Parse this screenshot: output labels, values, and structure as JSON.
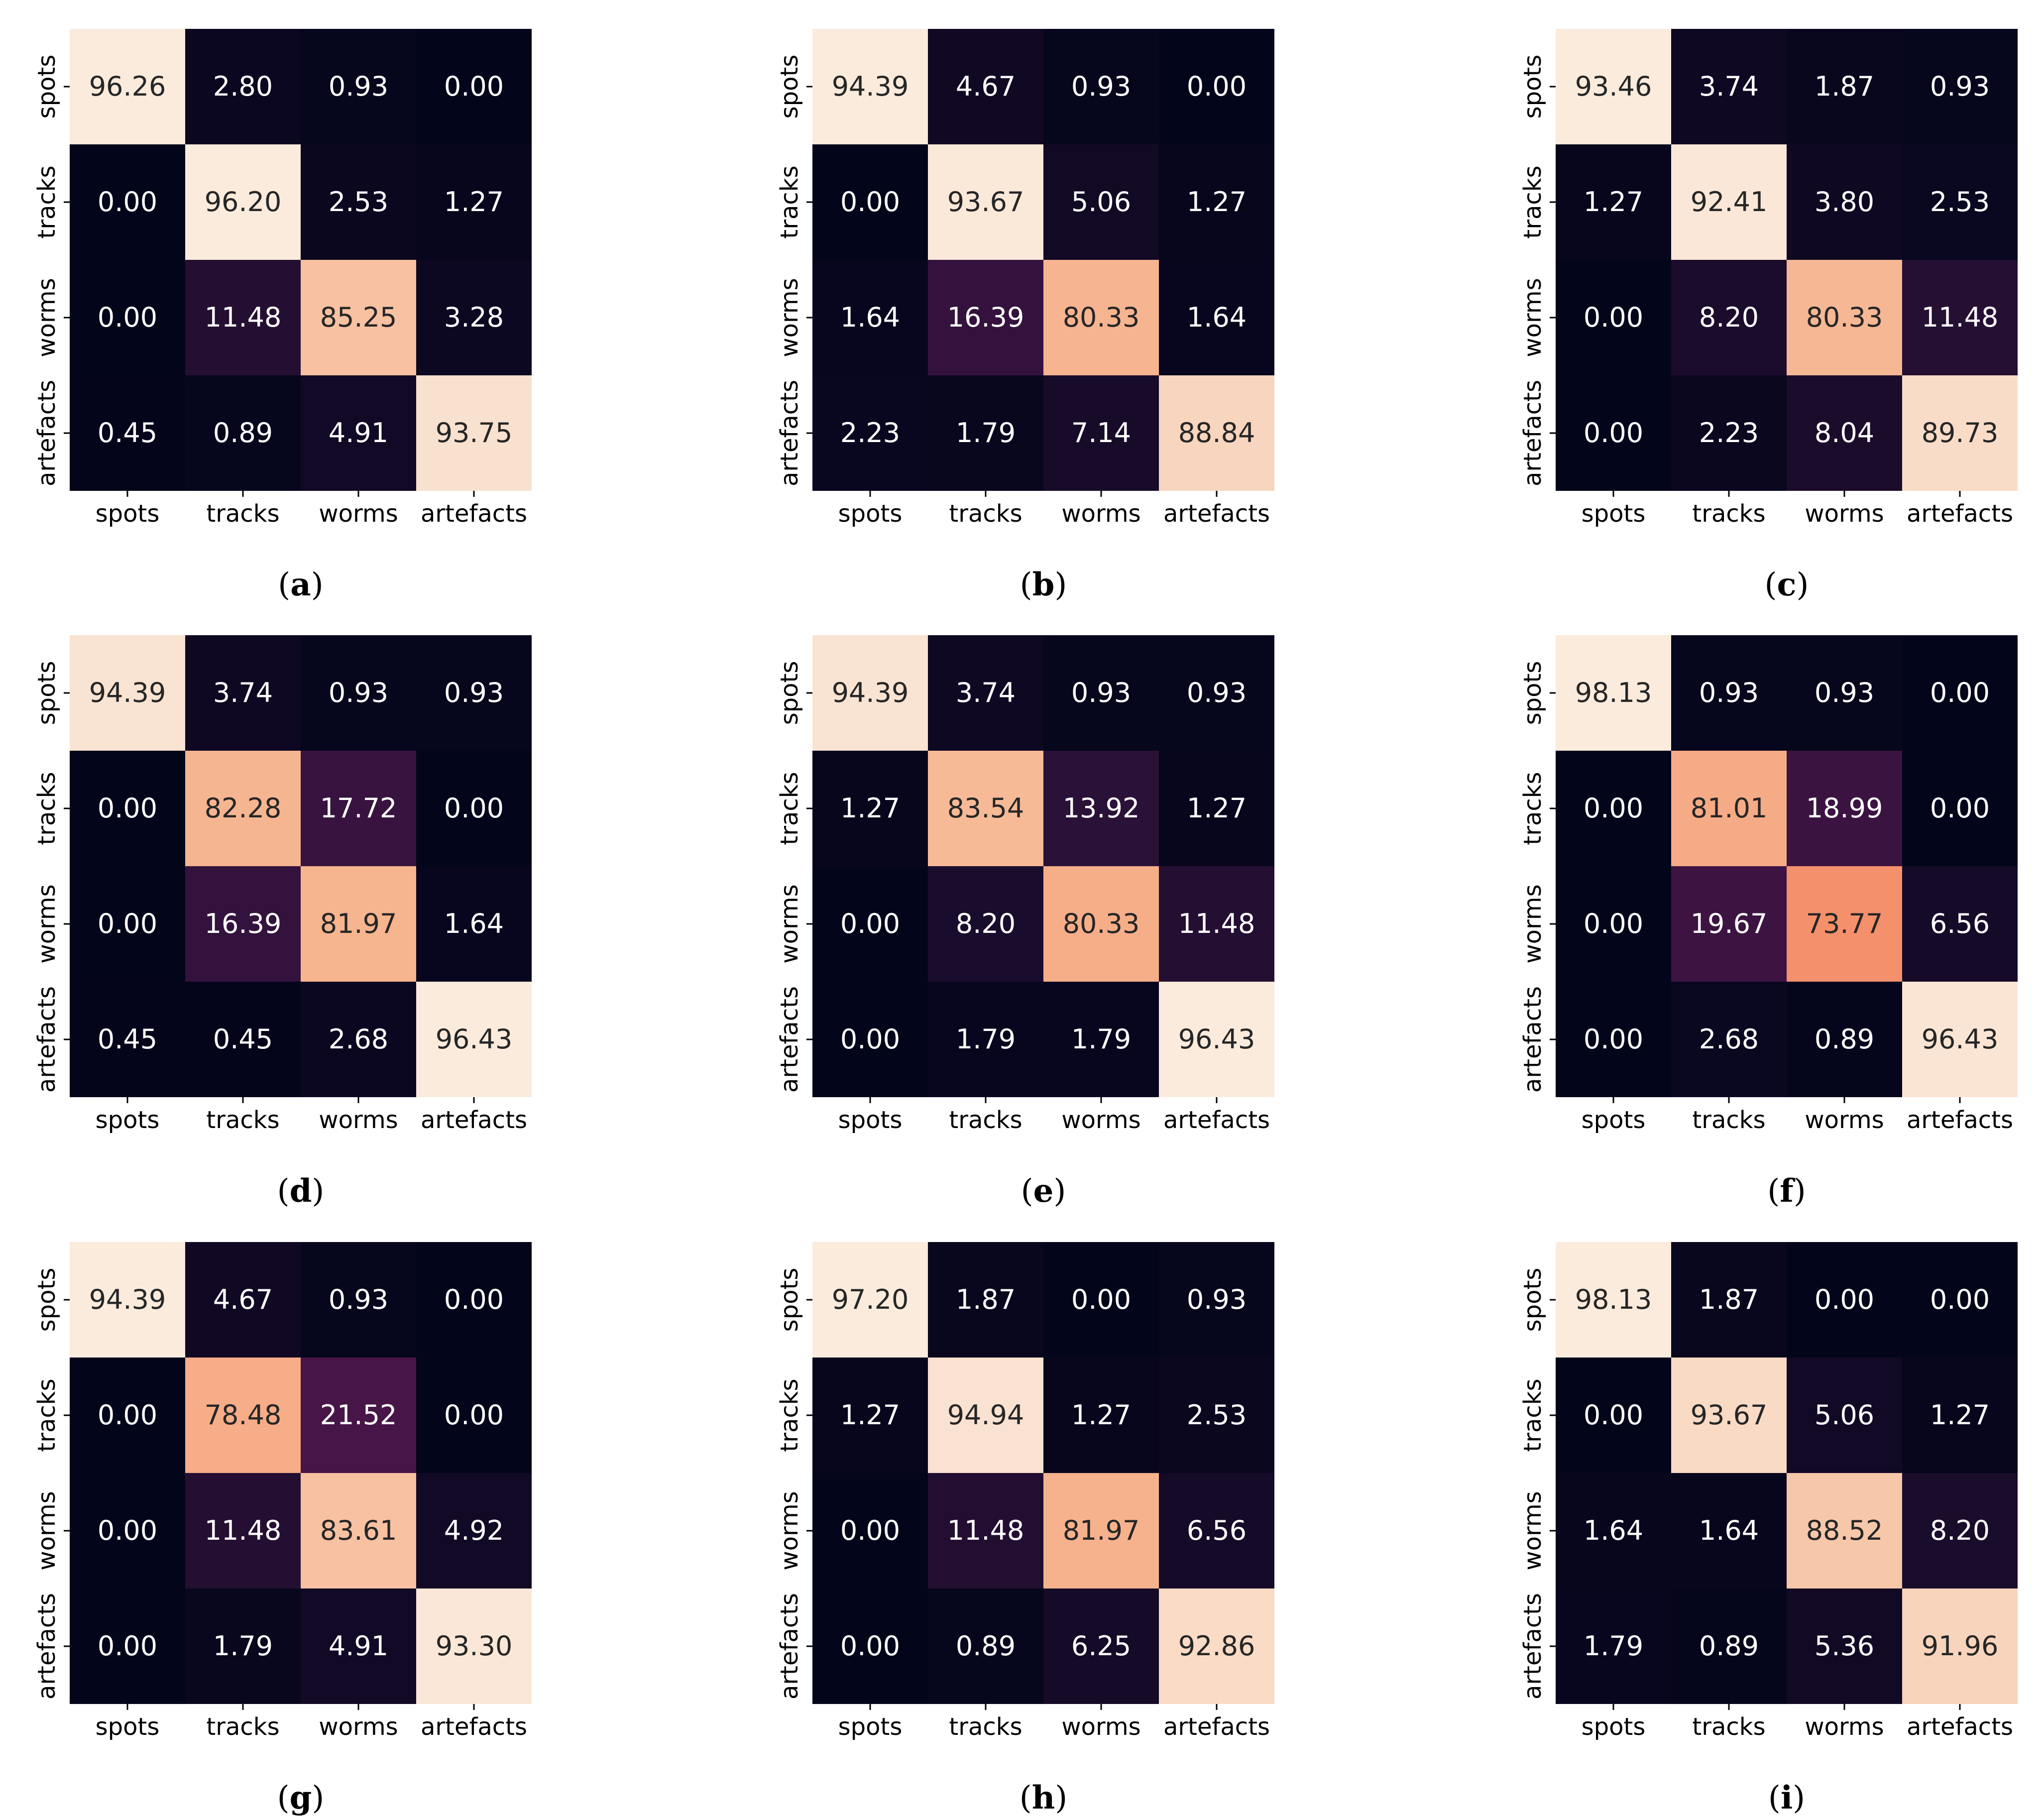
{
  "figure": {
    "type": "grid-of-confusion-matrices",
    "layout": "3x3"
  },
  "chart_data": [
    {
      "type": "heatmap",
      "caption": "(a)",
      "row_labels": [
        "spots",
        "tracks",
        "worms",
        "artefacts"
      ],
      "col_labels": [
        "spots",
        "tracks",
        "worms",
        "artefacts"
      ],
      "values": [
        [
          "96.26",
          "2.80",
          "0.93",
          "0.00"
        ],
        [
          "0.00",
          "96.20",
          "2.53",
          "1.27"
        ],
        [
          "0.00",
          "11.48",
          "85.25",
          "3.28"
        ],
        [
          "0.45",
          "0.89",
          "4.91",
          "93.75"
        ]
      ]
    },
    {
      "type": "heatmap",
      "caption": "(b)",
      "row_labels": [
        "spots",
        "tracks",
        "worms",
        "artefacts"
      ],
      "col_labels": [
        "spots",
        "tracks",
        "worms",
        "artefacts"
      ],
      "values": [
        [
          "94.39",
          "4.67",
          "0.93",
          "0.00"
        ],
        [
          "0.00",
          "93.67",
          "5.06",
          "1.27"
        ],
        [
          "1.64",
          "16.39",
          "80.33",
          "1.64"
        ],
        [
          "2.23",
          "1.79",
          "7.14",
          "88.84"
        ]
      ]
    },
    {
      "type": "heatmap",
      "caption": "(c)",
      "row_labels": [
        "spots",
        "tracks",
        "worms",
        "artefacts"
      ],
      "col_labels": [
        "spots",
        "tracks",
        "worms",
        "artefacts"
      ],
      "values": [
        [
          "93.46",
          "3.74",
          "1.87",
          "0.93"
        ],
        [
          "1.27",
          "92.41",
          "3.80",
          "2.53"
        ],
        [
          "0.00",
          "8.20",
          "80.33",
          "11.48"
        ],
        [
          "0.00",
          "2.23",
          "8.04",
          "89.73"
        ]
      ]
    },
    {
      "type": "heatmap",
      "caption": "(d)",
      "row_labels": [
        "spots",
        "tracks",
        "worms",
        "artefacts"
      ],
      "col_labels": [
        "spots",
        "tracks",
        "worms",
        "artefacts"
      ],
      "values": [
        [
          "94.39",
          "3.74",
          "0.93",
          "0.93"
        ],
        [
          "0.00",
          "82.28",
          "17.72",
          "0.00"
        ],
        [
          "0.00",
          "16.39",
          "81.97",
          "1.64"
        ],
        [
          "0.45",
          "0.45",
          "2.68",
          "96.43"
        ]
      ]
    },
    {
      "type": "heatmap",
      "caption": "(e)",
      "row_labels": [
        "spots",
        "tracks",
        "worms",
        "artefacts"
      ],
      "col_labels": [
        "spots",
        "tracks",
        "worms",
        "artefacts"
      ],
      "values": [
        [
          "94.39",
          "3.74",
          "0.93",
          "0.93"
        ],
        [
          "1.27",
          "83.54",
          "13.92",
          "1.27"
        ],
        [
          "0.00",
          "8.20",
          "80.33",
          "11.48"
        ],
        [
          "0.00",
          "1.79",
          "1.79",
          "96.43"
        ]
      ]
    },
    {
      "type": "heatmap",
      "caption": "(f)",
      "row_labels": [
        "spots",
        "tracks",
        "worms",
        "artefacts"
      ],
      "col_labels": [
        "spots",
        "tracks",
        "worms",
        "artefacts"
      ],
      "values": [
        [
          "98.13",
          "0.93",
          "0.93",
          "0.00"
        ],
        [
          "0.00",
          "81.01",
          "18.99",
          "0.00"
        ],
        [
          "0.00",
          "19.67",
          "73.77",
          "6.56"
        ],
        [
          "0.00",
          "2.68",
          "0.89",
          "96.43"
        ]
      ]
    },
    {
      "type": "heatmap",
      "caption": "(g)",
      "row_labels": [
        "spots",
        "tracks",
        "worms",
        "artefacts"
      ],
      "col_labels": [
        "spots",
        "tracks",
        "worms",
        "artefacts"
      ],
      "values": [
        [
          "94.39",
          "4.67",
          "0.93",
          "0.00"
        ],
        [
          "0.00",
          "78.48",
          "21.52",
          "0.00"
        ],
        [
          "0.00",
          "11.48",
          "83.61",
          "4.92"
        ],
        [
          "0.00",
          "1.79",
          "4.91",
          "93.30"
        ]
      ]
    },
    {
      "type": "heatmap",
      "caption": "(h)",
      "row_labels": [
        "spots",
        "tracks",
        "worms",
        "artefacts"
      ],
      "col_labels": [
        "spots",
        "tracks",
        "worms",
        "artefacts"
      ],
      "values": [
        [
          "97.20",
          "1.87",
          "0.00",
          "0.93"
        ],
        [
          "1.27",
          "94.94",
          "1.27",
          "2.53"
        ],
        [
          "0.00",
          "11.48",
          "81.97",
          "6.56"
        ],
        [
          "0.00",
          "0.89",
          "6.25",
          "92.86"
        ]
      ]
    },
    {
      "type": "heatmap",
      "caption": "(i)",
      "row_labels": [
        "spots",
        "tracks",
        "worms",
        "artefacts"
      ],
      "col_labels": [
        "spots",
        "tracks",
        "worms",
        "artefacts"
      ],
      "values": [
        [
          "98.13",
          "1.87",
          "0.00",
          "0.00"
        ],
        [
          "0.00",
          "93.67",
          "5.06",
          "1.27"
        ],
        [
          "1.64",
          "1.64",
          "88.52",
          "8.20"
        ],
        [
          "1.79",
          "0.89",
          "5.36",
          "91.96"
        ]
      ]
    }
  ]
}
